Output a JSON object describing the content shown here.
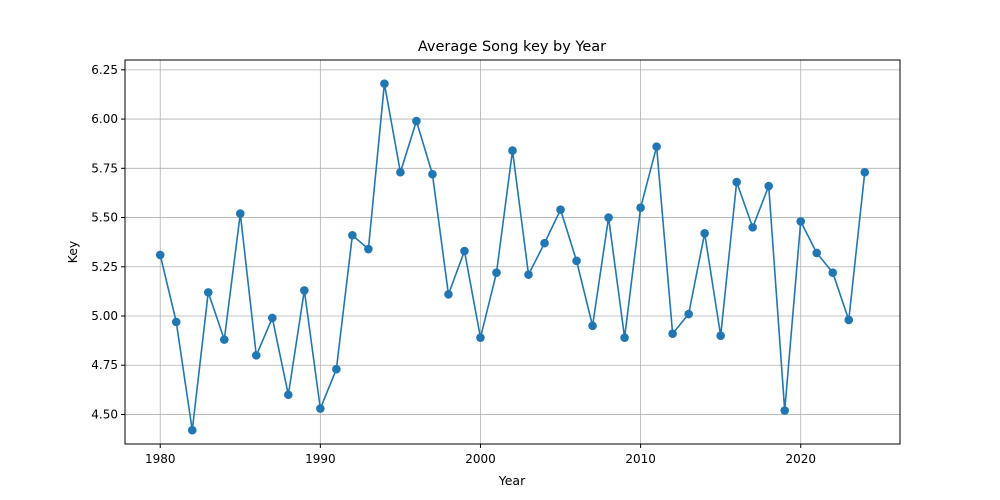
{
  "chart_data": {
    "type": "line",
    "title": "Average Song key by Year",
    "xlabel": "Year",
    "ylabel": "Key",
    "xlim": [
      1977.8,
      2026.2
    ],
    "ylim": [
      4.35,
      6.3
    ],
    "grid": true,
    "legend": "none",
    "x_ticks": [
      1980,
      1990,
      2000,
      2010,
      2020
    ],
    "y_ticks": [
      4.5,
      4.75,
      5.0,
      5.25,
      5.5,
      5.75,
      6.0,
      6.25
    ],
    "x_tick_labels": [
      "1980",
      "1990",
      "2000",
      "2010",
      "2020"
    ],
    "y_tick_labels": [
      "4.50",
      "4.75",
      "5.00",
      "5.25",
      "5.50",
      "5.75",
      "6.00",
      "6.25"
    ],
    "color": "#1f77b4",
    "series": [
      {
        "x": [
          1980,
          1981,
          1982,
          1983,
          1984,
          1985,
          1986,
          1987,
          1988,
          1989,
          1990,
          1991,
          1992,
          1993,
          1994,
          1995,
          1996,
          1997,
          1998,
          1999,
          2000,
          2001,
          2002,
          2003,
          2004,
          2005,
          2006,
          2007,
          2008,
          2009,
          2010,
          2011,
          2012,
          2013,
          2014,
          2015,
          2016,
          2017,
          2018,
          2019,
          2020,
          2021,
          2022,
          2023,
          2024
        ],
        "values": [
          5.31,
          4.97,
          4.42,
          5.12,
          4.88,
          5.52,
          4.8,
          4.99,
          4.6,
          5.13,
          4.53,
          4.73,
          5.41,
          5.34,
          6.18,
          5.73,
          5.99,
          5.72,
          5.11,
          5.33,
          4.89,
          5.22,
          5.84,
          5.21,
          5.37,
          5.54,
          5.28,
          4.95,
          5.5,
          4.89,
          5.55,
          5.86,
          4.91,
          5.01,
          5.42,
          4.9,
          5.68,
          5.45,
          5.66,
          4.52,
          5.48,
          5.32,
          5.22,
          4.98,
          5.73
        ]
      }
    ]
  }
}
